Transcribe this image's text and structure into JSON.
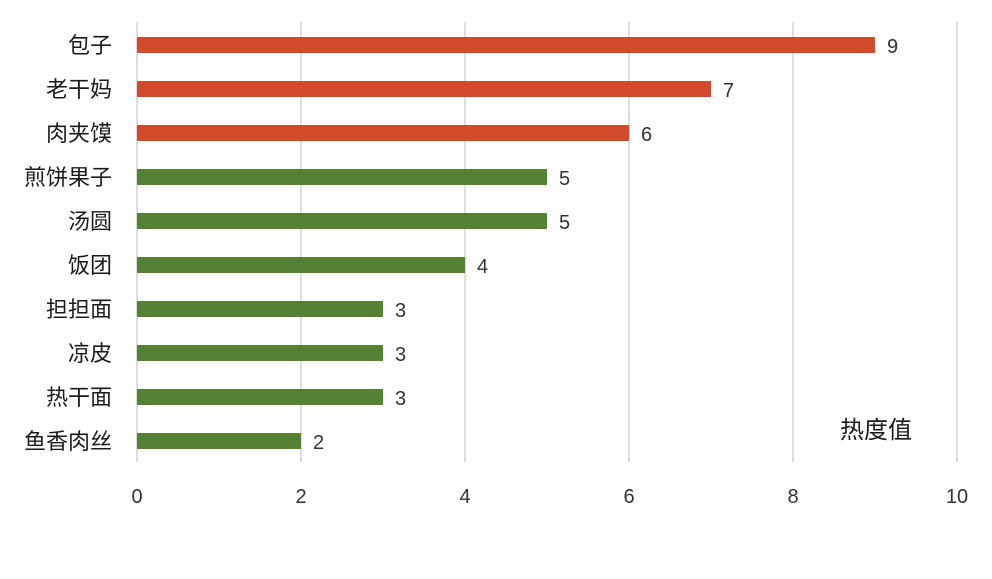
{
  "chart_data": {
    "type": "bar",
    "orientation": "horizontal",
    "categories": [
      "包子",
      "老干妈",
      "肉夹馍",
      "煎饼果子",
      "汤圆",
      "饭团",
      "担担面",
      "凉皮",
      "热干面",
      "鱼香肉丝"
    ],
    "values": [
      9,
      7,
      6,
      5,
      5,
      4,
      3,
      3,
      3,
      2
    ],
    "bar_colors": [
      "#d04b2b",
      "#d04b2b",
      "#d04b2b",
      "#548235",
      "#548235",
      "#548235",
      "#548235",
      "#548235",
      "#548235",
      "#548235"
    ],
    "xlim": [
      0,
      10
    ],
    "xticks": [
      "0",
      "2",
      "4",
      "6",
      "8",
      "10"
    ],
    "grid": true,
    "data_labels": true,
    "annotation": "热度值",
    "colors": {
      "highlight": "#d04b2b",
      "normal": "#548235",
      "grid": "#d4d4d4"
    }
  }
}
